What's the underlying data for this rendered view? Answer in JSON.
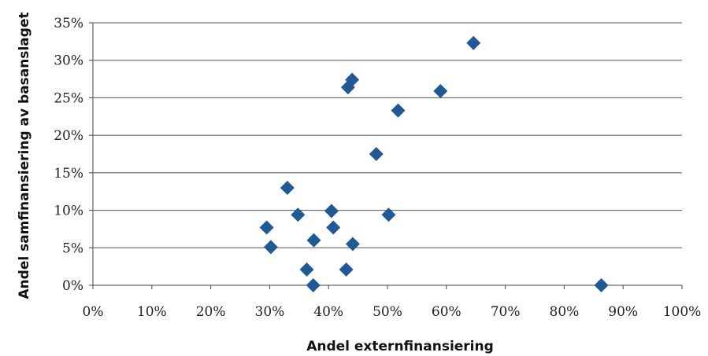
{
  "chart_data": {
    "type": "scatter",
    "xlabel": "Andel externfinansiering",
    "ylabel": "Andel samfinansiering av basanslaget",
    "xlim": [
      0,
      100
    ],
    "ylim": [
      0,
      35
    ],
    "x_ticks": [
      "0%",
      "10%",
      "20%",
      "30%",
      "40%",
      "50%",
      "60%",
      "70%",
      "80%",
      "90%",
      "100%"
    ],
    "y_ticks": [
      "0%",
      "5%",
      "10%",
      "15%",
      "20%",
      "25%",
      "30%",
      "35%"
    ],
    "grid": "horizontal",
    "marker": "diamond",
    "color": "#1f5a96",
    "points": [
      {
        "x": 29.5,
        "y": 7.7
      },
      {
        "x": 30.2,
        "y": 5.1
      },
      {
        "x": 33.0,
        "y": 13.0
      },
      {
        "x": 34.8,
        "y": 9.4
      },
      {
        "x": 36.3,
        "y": 2.1
      },
      {
        "x": 37.4,
        "y": 0.0
      },
      {
        "x": 37.5,
        "y": 6.0
      },
      {
        "x": 40.5,
        "y": 9.9
      },
      {
        "x": 40.8,
        "y": 7.7
      },
      {
        "x": 43.0,
        "y": 2.1
      },
      {
        "x": 43.3,
        "y": 26.4
      },
      {
        "x": 44.0,
        "y": 27.4
      },
      {
        "x": 44.1,
        "y": 5.5
      },
      {
        "x": 48.1,
        "y": 17.5
      },
      {
        "x": 50.2,
        "y": 9.4
      },
      {
        "x": 51.8,
        "y": 23.3
      },
      {
        "x": 59.0,
        "y": 25.9
      },
      {
        "x": 64.6,
        "y": 32.3
      },
      {
        "x": 86.3,
        "y": 0.0
      }
    ]
  }
}
